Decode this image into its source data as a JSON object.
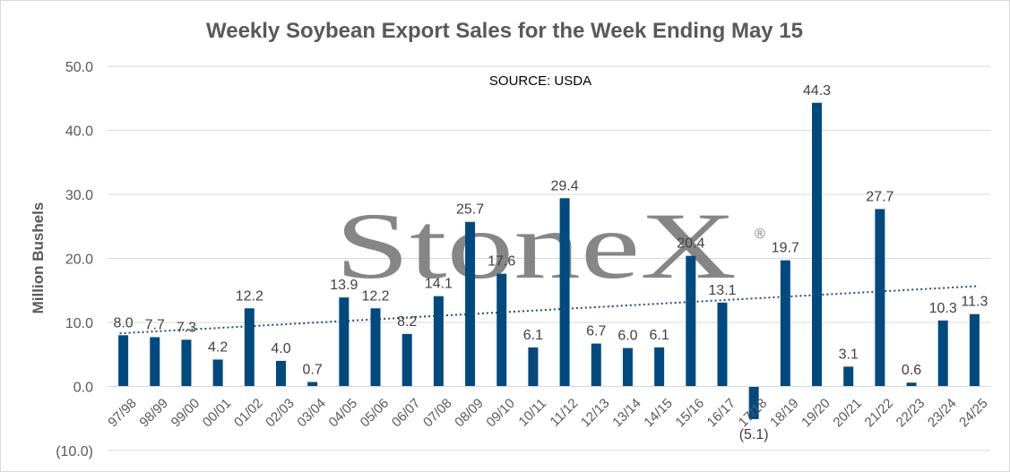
{
  "colors": {
    "bar": "#004a80",
    "negative_label": "#cc0000",
    "grid": "#d9d9d9",
    "trendline": "#1f4e79",
    "watermark": "#7f7f7f"
  },
  "watermark": {
    "text": "StoneX",
    "mark": "®"
  },
  "chart_data": {
    "type": "bar",
    "title": "Weekly Soybean Export Sales for the Week Ending May 15",
    "annotation": "SOURCE: USDA",
    "xlabel": "",
    "ylabel": "Million Bushels",
    "ylim": [
      -10,
      50
    ],
    "yticks": [
      -10,
      0,
      10,
      20,
      30,
      40,
      50
    ],
    "ytick_labels": [
      "(10.0)",
      "0.0",
      "10.0",
      "20.0",
      "30.0",
      "40.0",
      "50.0"
    ],
    "grid": true,
    "legend": "none",
    "trendline": {
      "type": "linear",
      "style": "dotted"
    },
    "categories": [
      "97/98",
      "98/99",
      "99/00",
      "00/01",
      "01/02",
      "02/03",
      "03/04",
      "04/05",
      "05/06",
      "06/07",
      "07/08",
      "08/09",
      "09/10",
      "10/11",
      "11/12",
      "12/13",
      "13/14",
      "14/15",
      "15/16",
      "16/17",
      "17/18",
      "18/19",
      "19/20",
      "20/21",
      "21/22",
      "22/23",
      "23/24",
      "24/25"
    ],
    "values": [
      8.0,
      7.7,
      7.3,
      4.2,
      12.2,
      4.0,
      0.7,
      13.9,
      12.2,
      8.2,
      14.1,
      25.7,
      17.6,
      6.1,
      29.4,
      6.7,
      6.0,
      6.1,
      20.4,
      13.1,
      -5.1,
      19.7,
      44.3,
      3.1,
      27.7,
      0.6,
      10.3,
      11.3
    ],
    "value_labels": [
      "8.0",
      "7.7",
      "7.3",
      "4.2",
      "12.2",
      "4.0",
      "0.7",
      "13.9",
      "12.2",
      "8.2",
      "14.1",
      "25.7",
      "17.6",
      "6.1",
      "29.4",
      "6.7",
      "6.0",
      "6.1",
      "20.4",
      "13.1",
      "(5.1)",
      "19.7",
      "44.3",
      "3.1",
      "27.7",
      "0.6",
      "10.3",
      "11.3"
    ]
  }
}
